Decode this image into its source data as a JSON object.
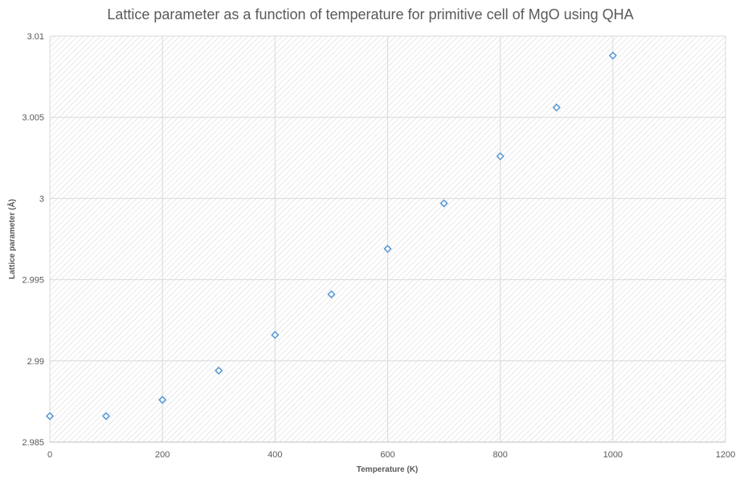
{
  "colors": {
    "marker": "#5B9BD5",
    "grid": "#d9d9d9",
    "hatch": "#d4d4d4",
    "text": "#595959"
  },
  "chart_data": {
    "type": "scatter",
    "title": "Lattice parameter as a function of temperature for primitive cell of MgO using QHA",
    "xlabel": "Temperature (K)",
    "ylabel": "Lattice parameter (Å)",
    "xlim": [
      0,
      1200
    ],
    "ylim": [
      2.985,
      3.01
    ],
    "x_ticks": [
      0,
      200,
      400,
      600,
      800,
      1000,
      1200
    ],
    "x_tick_labels": [
      "0",
      "200",
      "400",
      "600",
      "800",
      "1000",
      "1200"
    ],
    "y_ticks": [
      2.985,
      2.99,
      2.995,
      3.0,
      3.005,
      3.01
    ],
    "y_tick_labels": [
      "2.985",
      "2.99",
      "2.995",
      "3",
      "3.005",
      "3.01"
    ],
    "grid": true,
    "marker": "diamond-open",
    "series": [
      {
        "x": [
          0,
          100,
          200,
          300,
          400,
          500,
          600,
          700,
          800,
          900,
          1000
        ],
        "y": [
          2.9866,
          2.9866,
          2.9876,
          2.9894,
          2.9916,
          2.9941,
          2.9969,
          2.9997,
          3.0026,
          3.0056,
          3.0088
        ]
      }
    ]
  }
}
